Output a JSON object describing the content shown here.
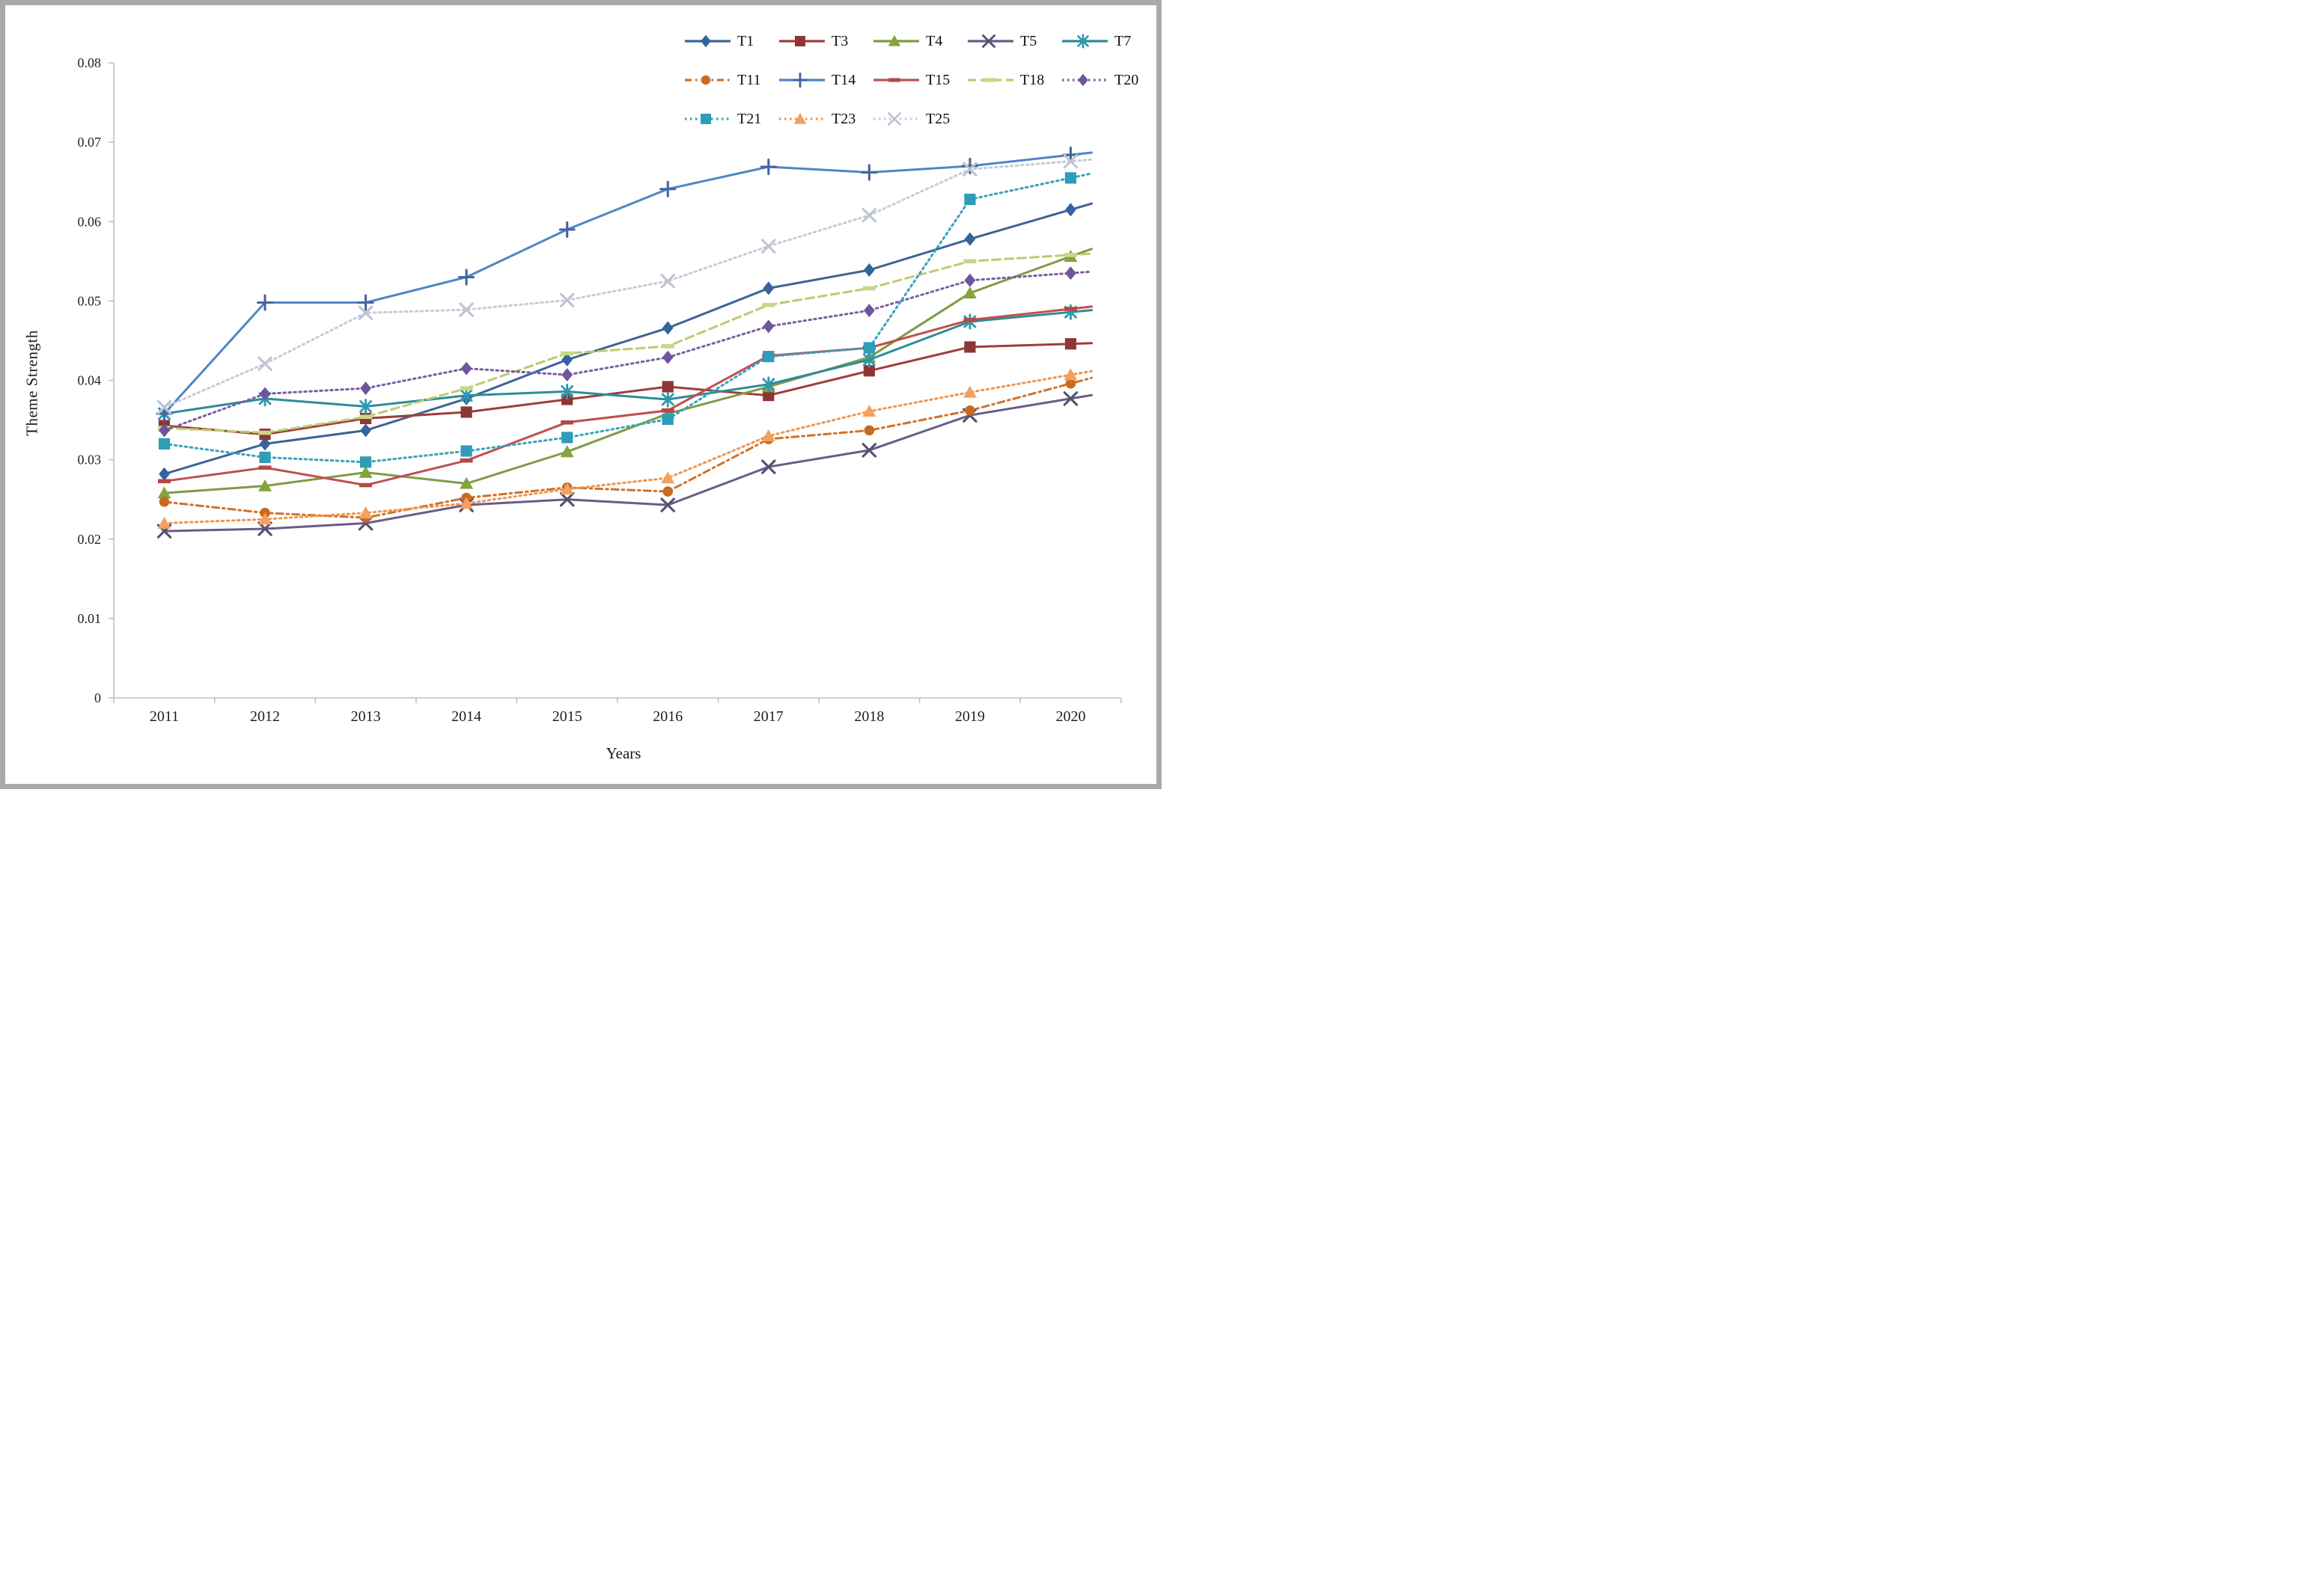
{
  "window": {
    "frame_color": "#a9a9a9",
    "background": "#ffffff"
  },
  "axis_style": {
    "line_color": "#bfbfbf",
    "tick_color": "#bfbfbf",
    "text_color": "#1f1f1f"
  },
  "chart_data": {
    "type": "line",
    "title": "",
    "xlabel": "Years",
    "ylabel": "Theme Strength",
    "x": [
      "2011",
      "2012",
      "2013",
      "2014",
      "2015",
      "2016",
      "2017",
      "2018",
      "2019",
      "2020"
    ],
    "ylim": [
      0,
      0.08
    ],
    "ytick_step": 0.01,
    "ytick_labels": [
      "0",
      "0.01",
      "0.02",
      "0.03",
      "0.04",
      "0.05",
      "0.06",
      "0.07",
      "0.08"
    ],
    "grid": false,
    "legend_position": "top-right",
    "legend_rows": [
      5,
      5,
      3
    ],
    "series": [
      {
        "name": "T1",
        "color": "#3C6494",
        "marker_color": "#35639B",
        "line_style": "solid",
        "marker": "diamond",
        "values": [
          0.0282,
          0.032,
          0.0337,
          0.0377,
          0.0426,
          0.0466,
          0.0516,
          0.0539,
          0.0578,
          0.0615
        ]
      },
      {
        "name": "T3",
        "color": "#9E3D3B",
        "marker_color": "#8E3634",
        "line_style": "solid",
        "marker": "square",
        "values": [
          0.0343,
          0.0332,
          0.0352,
          0.036,
          0.0376,
          0.0392,
          0.0381,
          0.0412,
          0.0442,
          0.0446
        ]
      },
      {
        "name": "T4",
        "color": "#7D9C45",
        "marker_color": "#85A43C",
        "line_style": "solid",
        "marker": "triangle",
        "values": [
          0.0258,
          0.0267,
          0.0284,
          0.027,
          0.031,
          0.0358,
          0.0392,
          0.0429,
          0.051,
          0.0556
        ]
      },
      {
        "name": "T5",
        "color": "#6A5B88",
        "marker_color": "#555070",
        "line_style": "solid",
        "marker": "x",
        "values": [
          0.021,
          0.0213,
          0.022,
          0.0243,
          0.025,
          0.0243,
          0.0291,
          0.0312,
          0.0356,
          0.0377
        ]
      },
      {
        "name": "T7",
        "color": "#2F8B99",
        "marker_color": "#2E9AB0",
        "line_style": "solid",
        "marker": "asterisk",
        "values": [
          0.0358,
          0.0377,
          0.0367,
          0.0381,
          0.0386,
          0.0376,
          0.0395,
          0.0426,
          0.0474,
          0.0486
        ]
      },
      {
        "name": "T11",
        "color": "#D07229",
        "marker_color": "#C96A22",
        "line_style": "dash-dot",
        "marker": "circle",
        "values": [
          0.0247,
          0.0233,
          0.0227,
          0.0252,
          0.0265,
          0.026,
          0.0326,
          0.0337,
          0.0362,
          0.0396
        ]
      },
      {
        "name": "T14",
        "color": "#5185C5",
        "marker_color": "#45659C",
        "line_style": "solid",
        "marker": "plus",
        "values": [
          0.0358,
          0.0498,
          0.0498,
          0.053,
          0.059,
          0.0641,
          0.0669,
          0.0662,
          0.067,
          0.0684
        ]
      },
      {
        "name": "T15",
        "color": "#C0504D",
        "marker_color": "#B34A47",
        "line_style": "solid",
        "marker": "dash",
        "values": [
          0.0273,
          0.029,
          0.0268,
          0.0299,
          0.0347,
          0.0362,
          0.0431,
          0.0441,
          0.0476,
          0.049
        ]
      },
      {
        "name": "T18",
        "color": "#BCCB6F",
        "marker_color": "#C9D787",
        "line_style": "dash",
        "marker": "dash",
        "values": [
          0.034,
          0.0334,
          0.0354,
          0.039,
          0.0434,
          0.0443,
          0.0495,
          0.0516,
          0.055,
          0.0558
        ]
      },
      {
        "name": "T20",
        "color": "#7A5CA5",
        "marker_color": "#6F54A0",
        "line_style": "dot",
        "marker": "diamond",
        "values": [
          0.0337,
          0.0383,
          0.039,
          0.0415,
          0.0407,
          0.0429,
          0.0468,
          0.0488,
          0.0526,
          0.0535
        ]
      },
      {
        "name": "T21",
        "color": "#35A3BE",
        "marker_color": "#2F9CB8",
        "line_style": "dot",
        "marker": "square",
        "values": [
          0.032,
          0.0303,
          0.0297,
          0.0311,
          0.0328,
          0.0351,
          0.043,
          0.0441,
          0.0628,
          0.0655
        ]
      },
      {
        "name": "T23",
        "color": "#F0944C",
        "marker_color": "#F2A15F",
        "line_style": "dot",
        "marker": "triangle",
        "values": [
          0.022,
          0.0225,
          0.0233,
          0.0245,
          0.0263,
          0.0277,
          0.033,
          0.0361,
          0.0385,
          0.0407
        ]
      },
      {
        "name": "T25",
        "color": "#C7CBD8",
        "marker_color": "#BFC4D4",
        "line_style": "dot",
        "marker": "x",
        "values": [
          0.0366,
          0.0421,
          0.0485,
          0.0489,
          0.0501,
          0.0525,
          0.0569,
          0.0608,
          0.0666,
          0.0676
        ]
      }
    ]
  }
}
